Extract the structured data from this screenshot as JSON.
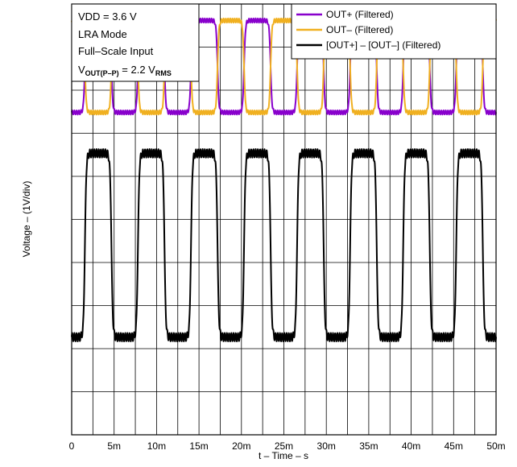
{
  "chart_data": {
    "type": "line",
    "xlabel": "t – Time – s",
    "ylabel": "Voltage – (1V/div)",
    "x_ticks": [
      "0",
      "5m",
      "10m",
      "15m",
      "20m",
      "25m",
      "30m",
      "35m",
      "40m",
      "45m",
      "50m"
    ],
    "xlim": [
      0,
      0.05
    ],
    "ylim": [
      -10,
      0
    ],
    "y_divisions": 10,
    "grid": true,
    "legend_position": "top-right",
    "annotations": {
      "vdd": "VDD = 3.6 V",
      "mode": "LRA Mode",
      "input": "Full–Scale Input",
      "vout_base": "V",
      "vout_sub": "OUT(P–P)",
      "vout_mid": " = 2.2 V",
      "vout_sub2": "RMS"
    },
    "signal": {
      "frequency_hz": 160,
      "amplitude_div": 2.2
    },
    "series": [
      {
        "name": "OUT+ (Filtered)",
        "color": "#8800cc",
        "offset_div": -1.45,
        "polarity": 1,
        "scale": 0.5,
        "phase_s": 0.00156
      },
      {
        "name": "OUT– (Filtered)",
        "color": "#f0b020",
        "offset_div": -1.45,
        "polarity": -1,
        "scale": 0.5,
        "phase_s": 0.00156
      },
      {
        "name": "[OUT+] – [OUT–] (Filtered)",
        "color": "#000000",
        "offset_div": -5.6,
        "polarity": 1,
        "scale": 1,
        "phase_s": 0.00156
      }
    ]
  }
}
